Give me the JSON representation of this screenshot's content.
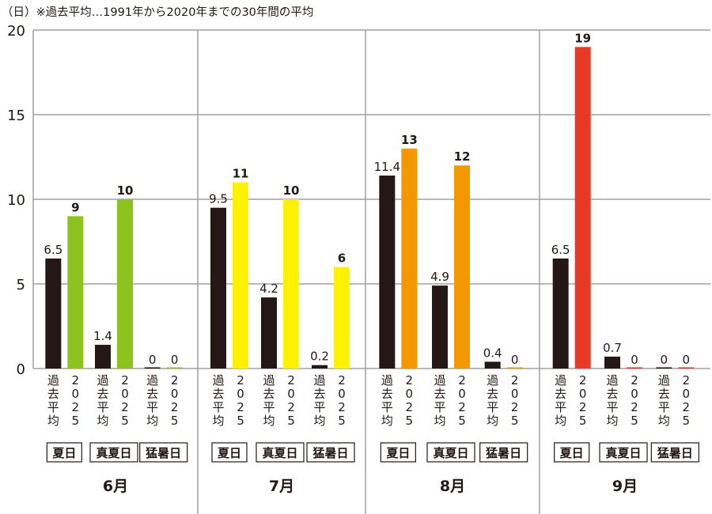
{
  "chart_data": {
    "type": "bar",
    "title": "（日）※過去平均…1991年から2020年までの30年間の平均",
    "ylabel": "（日）",
    "ylim": [
      0,
      20
    ],
    "yticks": [
      0,
      5,
      10,
      15,
      20
    ],
    "grid": true,
    "bar_labels": {
      "past": "過去平均",
      "current": "2025"
    },
    "past_color": "#231815",
    "months": [
      {
        "label": "6月",
        "color": "#8dc21f",
        "groups": [
          {
            "category": "夏日",
            "past": 6.5,
            "current": 9
          },
          {
            "category": "真夏日",
            "past": 1.4,
            "current": 10
          },
          {
            "category": "猛暑日",
            "past": 0,
            "current": 0
          }
        ]
      },
      {
        "label": "7月",
        "color": "#fff100",
        "groups": [
          {
            "category": "夏日",
            "past": 9.5,
            "current": 11
          },
          {
            "category": "真夏日",
            "past": 4.2,
            "current": 10
          },
          {
            "category": "猛暑日",
            "past": 0.2,
            "current": 6
          }
        ]
      },
      {
        "label": "8月",
        "color": "#f39800",
        "groups": [
          {
            "category": "夏日",
            "past": 11.4,
            "current": 13
          },
          {
            "category": "真夏日",
            "past": 4.9,
            "current": 12
          },
          {
            "category": "猛暑日",
            "past": 0.4,
            "current": 0
          }
        ]
      },
      {
        "label": "9月",
        "color": "#e83828",
        "groups": [
          {
            "category": "夏日",
            "past": 6.5,
            "current": 19
          },
          {
            "category": "真夏日",
            "past": 0.7,
            "current": 0
          },
          {
            "category": "猛暑日",
            "past": 0,
            "current": 0
          }
        ]
      }
    ]
  }
}
